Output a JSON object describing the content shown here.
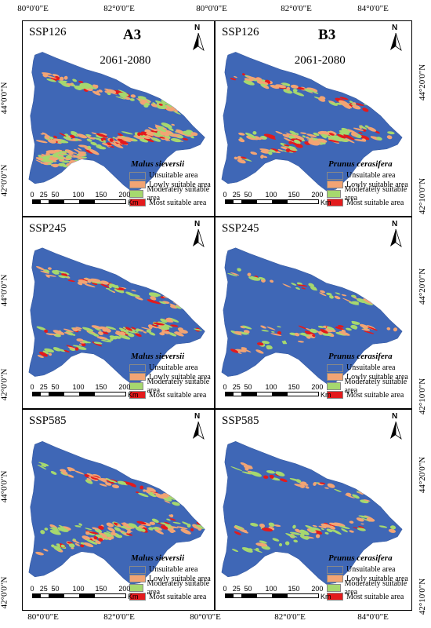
{
  "axes": {
    "x_ticks": [
      "80°0'0\"E",
      "82°0'0\"E",
      "84°0'0\"E"
    ],
    "y_ticks": [
      "44°0'0\"N",
      "42°0'0\"N"
    ],
    "y_ticks_right": [
      "44°20'0\"N",
      "42°10'0\"N"
    ]
  },
  "north_symbol": {
    "letter": "N",
    "icon": "north-arrow-icon"
  },
  "legend": {
    "items": [
      {
        "label": "Unsuitable area",
        "color": "#3f67b6"
      },
      {
        "label": "Lowly suitable area",
        "color": "#f2a474"
      },
      {
        "label": "Moderately suitable area",
        "color": "#a6d86e"
      },
      {
        "label": "Most suitable area",
        "color": "#e31a1c"
      }
    ]
  },
  "scale_bar": {
    "ticks": [
      "0",
      "25",
      "50",
      "100",
      "150",
      "200"
    ],
    "unit": "Km"
  },
  "panels": [
    {
      "scenario": "SSP126",
      "label": "A3",
      "period": "2061-2080",
      "species": "Malus sieversii",
      "suitability": "high-south"
    },
    {
      "scenario": "SSP126",
      "label": "B3",
      "period": "2061-2080",
      "species": "Prunus cerasifera",
      "suitability": "medium"
    },
    {
      "scenario": "SSP245",
      "label": "",
      "period": "",
      "species": "Malus sieversii",
      "suitability": "medium"
    },
    {
      "scenario": "SSP245",
      "label": "",
      "period": "",
      "species": "Prunus cerasifera",
      "suitability": "low"
    },
    {
      "scenario": "SSP585",
      "label": "",
      "period": "",
      "species": "Malus sieversii",
      "suitability": "medium"
    },
    {
      "scenario": "SSP585",
      "label": "",
      "period": "",
      "species": "Prunus cerasifera",
      "suitability": "low"
    }
  ]
}
